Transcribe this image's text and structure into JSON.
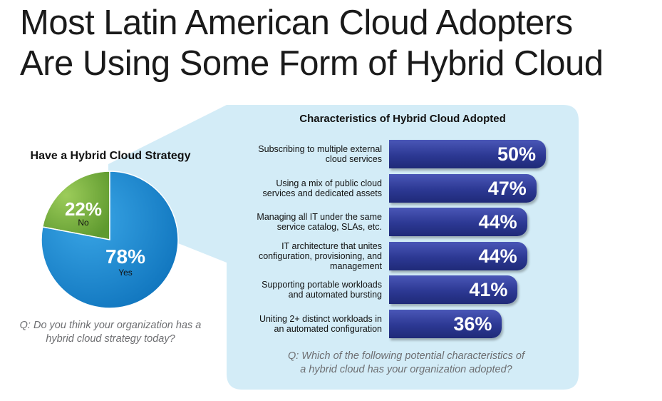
{
  "title": {
    "line1": "Most Latin American Cloud Adopters",
    "line2": "Are Using Some Form of Hybrid Cloud"
  },
  "colors": {
    "pie_yes": "#1e8fd6",
    "pie_no": "#7cb342",
    "bar": "#2c3893",
    "callout_bg": "#d3ecf7"
  },
  "chart_data": [
    {
      "type": "pie",
      "title": "Have a Hybrid Cloud Strategy",
      "slices": [
        {
          "label": "No",
          "value": 22,
          "display": "22%"
        },
        {
          "label": "Yes",
          "value": 78,
          "display": "78%"
        }
      ],
      "question": {
        "line1": "Q: Do you think your organization has a",
        "line2": "hybrid cloud strategy today?"
      }
    },
    {
      "type": "bar",
      "orientation": "horizontal",
      "title": "Characteristics of Hybrid Cloud Adopted",
      "categories": [
        {
          "line1": "Subscribing to multiple external",
          "line2": "cloud services"
        },
        {
          "line1": "Using a mix of public cloud",
          "line2": "services and dedicated assets"
        },
        {
          "line1": "Managing all IT under the same",
          "line2": "service catalog, SLAs, etc."
        },
        {
          "line1": "IT architecture that unites",
          "line2": "configuration, provisioning, and",
          "line3": "management"
        },
        {
          "line1": "Supporting portable workloads",
          "line2": "and automated bursting"
        },
        {
          "line1": "Uniting 2+ distinct workloads in",
          "line2": "an automated configuration"
        }
      ],
      "values": [
        50,
        47,
        44,
        44,
        41,
        36
      ],
      "labels": [
        "50%",
        "47%",
        "44%",
        "44%",
        "41%",
        "36%"
      ],
      "question": {
        "line1": "Q: Which of the following potential characteristics of",
        "line2": "a hybrid cloud has your organization adopted?"
      }
    }
  ]
}
